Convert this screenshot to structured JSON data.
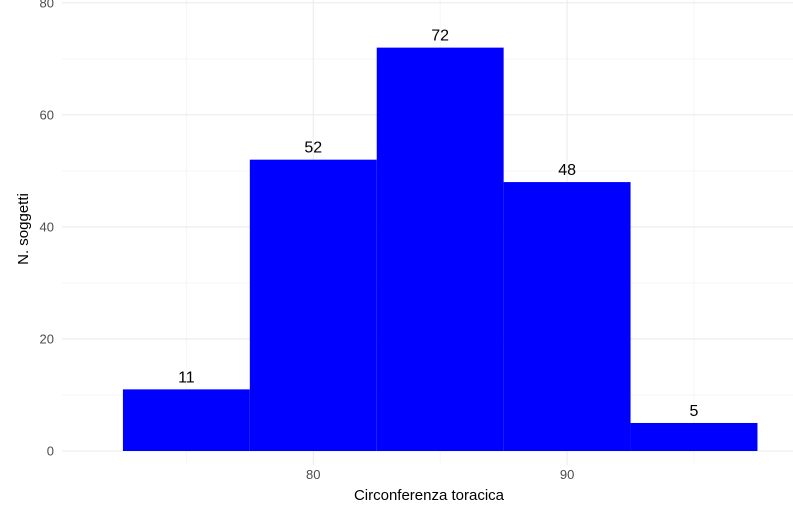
{
  "chart_data": {
    "type": "bar",
    "title": "",
    "xlabel": "Circonferenza toracica",
    "ylabel": "N. soggetti",
    "bin_width": 5,
    "bins": [
      {
        "center": 75,
        "value": 11
      },
      {
        "center": 80,
        "value": 52
      },
      {
        "center": 85,
        "value": 72
      },
      {
        "center": 90,
        "value": 48
      },
      {
        "center": 95,
        "value": 5
      }
    ],
    "data_labels": [
      "11",
      "52",
      "72",
      "48",
      "5"
    ],
    "x_ticks": [
      80,
      90
    ],
    "x_tick_labels": [
      "80",
      "90"
    ],
    "y_ticks": [
      0,
      20,
      40,
      60,
      80
    ],
    "y_tick_labels": [
      "0",
      "20",
      "40",
      "60",
      "80"
    ],
    "xlim": [
      70.1,
      98.9
    ],
    "ylim": [
      -2.5,
      80.5
    ],
    "grid": true,
    "legend": "none",
    "colors": {
      "bar": "#0000ff",
      "grid_major": "#ebebeb",
      "grid_minor": "#f5f5f5",
      "tick_text": "#4d4d4d",
      "label_text": "#000000"
    }
  }
}
